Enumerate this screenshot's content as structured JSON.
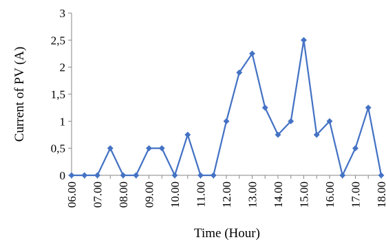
{
  "chart_data": {
    "type": "line",
    "xlabel": "Time (Hour)",
    "ylabel": "Current of PV (A)",
    "ylim": [
      0,
      3
    ],
    "y_ticks": [
      "0",
      "0,5",
      "1",
      "1,5",
      "2",
      "2,5",
      "3"
    ],
    "y_tick_values": [
      0,
      0.5,
      1,
      1.5,
      2,
      2.5,
      3
    ],
    "x_tick_labels": [
      "06.00",
      "07.00",
      "08.00",
      "09.00",
      "10.00",
      "11.00",
      "12.00",
      "13.00",
      "14.00",
      "15.00",
      "16.00",
      "17.00",
      "18.00"
    ],
    "x": [
      "06.00",
      "06.30",
      "07.00",
      "07.30",
      "08.00",
      "08.30",
      "09.00",
      "09.30",
      "10.00",
      "10.30",
      "11.00",
      "11.30",
      "12.00",
      "12.30",
      "13.00",
      "13.30",
      "14.00",
      "14.30",
      "15.00",
      "15.30",
      "16.00",
      "16.30",
      "17.00",
      "17.30",
      "18.00"
    ],
    "values": [
      0,
      0,
      0,
      0.5,
      0,
      0,
      0.5,
      0.5,
      0,
      0.75,
      0,
      0,
      1,
      1.9,
      2.25,
      1.25,
      0.75,
      1,
      2.5,
      0.75,
      1,
      0,
      0.5,
      1.25,
      0
    ],
    "legend": "none",
    "grid": false,
    "series_color": "#4472C4"
  }
}
